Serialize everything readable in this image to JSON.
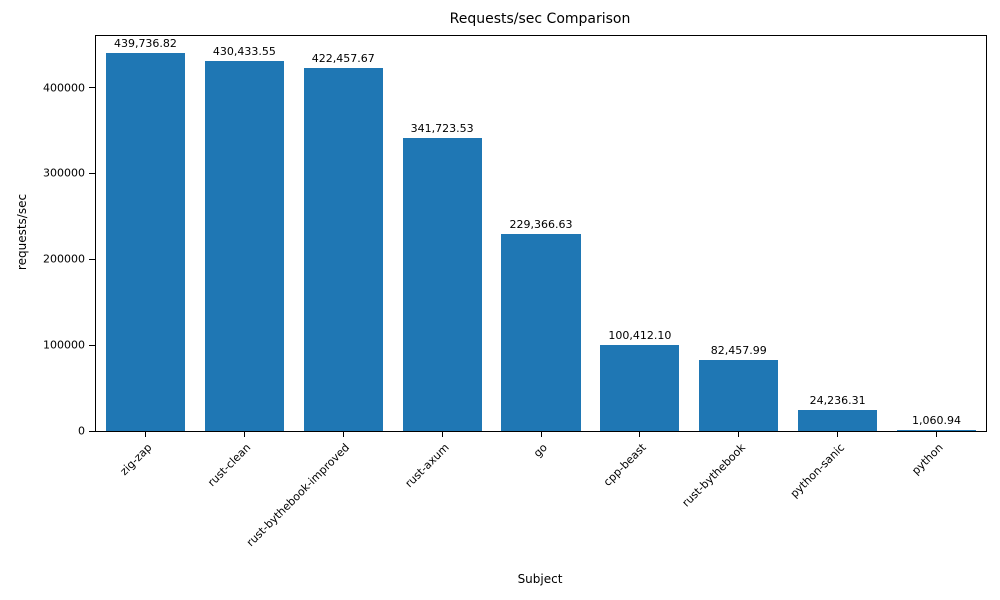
{
  "chart_data": {
    "type": "bar",
    "title": "Requests/sec Comparison",
    "xlabel": "Subject",
    "ylabel": "requests/sec",
    "categories": [
      "zig-zap",
      "rust-clean",
      "rust-bythebook-improved",
      "rust-axum",
      "go",
      "cpp-beast",
      "rust-bythebook",
      "python-sanic",
      "python"
    ],
    "values": [
      439736.82,
      430433.55,
      422457.67,
      341723.53,
      229366.63,
      100412.1,
      82457.99,
      24236.31,
      1060.94
    ],
    "value_labels": [
      "439,736.82",
      "430,433.55",
      "422,457.67",
      "341,723.53",
      "229,366.63",
      "100,412.10",
      "82,457.99",
      "24,236.31",
      "1,060.94"
    ],
    "bar_color": "#1f77b4",
    "ylim": [
      0,
      460000
    ],
    "yticks": [
      0,
      100000,
      200000,
      300000,
      400000
    ],
    "ytick_labels": [
      "0",
      "100000",
      "200000",
      "300000",
      "400000"
    ],
    "grid": false,
    "legend_position": "none"
  }
}
